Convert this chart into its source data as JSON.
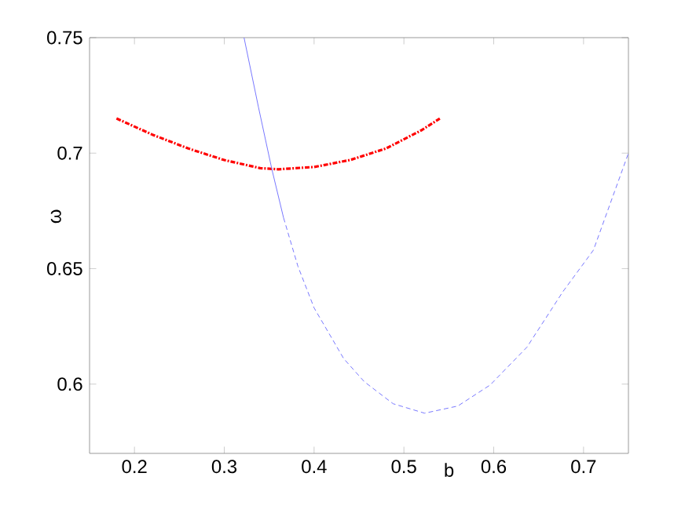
{
  "chart_data": {
    "type": "line",
    "xlabel": "b",
    "ylabel": "ω",
    "xlim": [
      0.15,
      0.75
    ],
    "ylim": [
      0.57,
      0.75
    ],
    "xticks": [
      0.2,
      0.3,
      0.4,
      0.5,
      0.6,
      0.7
    ],
    "yticks": [
      0.6,
      0.65,
      0.7,
      0.75
    ],
    "grid": false,
    "series": [
      {
        "color": "#ff0000",
        "line_style": "dashed",
        "x": [
          0.18,
          0.22,
          0.26,
          0.3,
          0.34,
          0.36,
          0.4,
          0.44,
          0.48,
          0.52,
          0.54
        ],
        "values": [
          0.715,
          0.708,
          0.702,
          0.697,
          0.6935,
          0.693,
          0.694,
          0.697,
          0.702,
          0.71,
          0.715
        ]
      },
      {
        "color": "#7777ff",
        "line_style": "solid",
        "x": [
          0.322,
          0.338,
          0.353,
          0.366
        ],
        "values": [
          0.75,
          0.72,
          0.693,
          0.672
        ]
      },
      {
        "color": "#7777ff",
        "line_style": "dashed",
        "x": [
          0.366,
          0.382,
          0.4,
          0.433,
          0.456,
          0.488,
          0.523,
          0.56,
          0.596,
          0.637,
          0.677,
          0.711,
          0.75
        ],
        "values": [
          0.672,
          0.651,
          0.633,
          0.611,
          0.601,
          0.5915,
          0.5874,
          0.5905,
          0.5996,
          0.616,
          0.64,
          0.658,
          0.7
        ]
      }
    ]
  }
}
